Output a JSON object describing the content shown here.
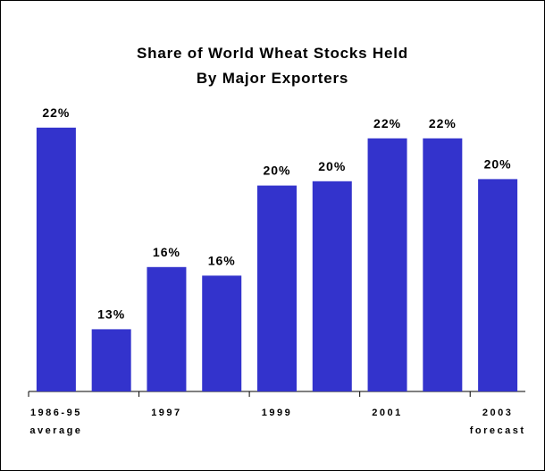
{
  "chart_data": {
    "type": "bar",
    "title": "Share of World Wheat Stocks Held\nBy Major Exporters",
    "categories": [
      "1986-95\naverage",
      null,
      "1997",
      null,
      "1999",
      null,
      "2001",
      null,
      "2003\nforecast"
    ],
    "values": [
      22.4,
      13.0,
      15.9,
      15.5,
      19.7,
      19.9,
      21.9,
      21.9,
      20.0
    ],
    "value_labels": [
      "22%",
      "13%",
      "16%",
      "16%",
      "20%",
      "20%",
      "22%",
      "22%",
      "20%"
    ],
    "color": "#3333cc",
    "ylim": [
      10.1,
      24
    ]
  }
}
